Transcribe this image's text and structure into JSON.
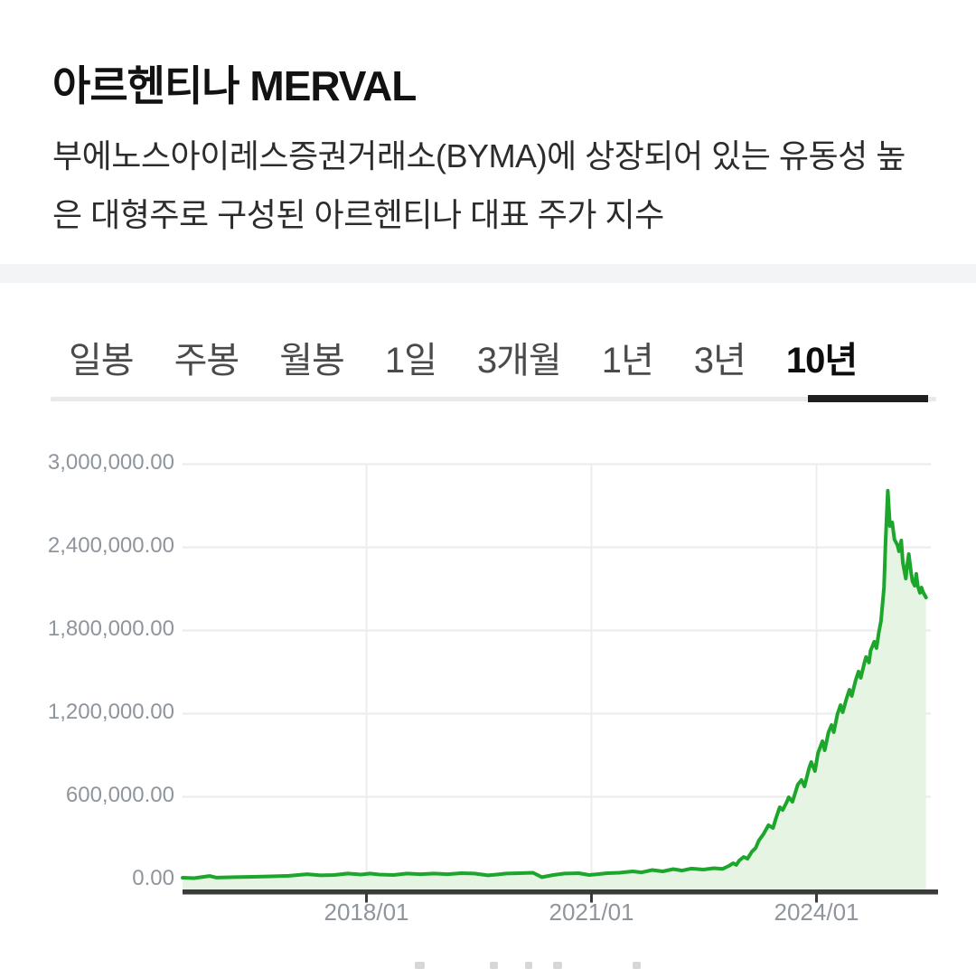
{
  "header": {
    "title": "아르헨티나 MERVAL",
    "description": "부에노스아이레스증권거래소(BYMA)에 상장되어 있는 유동성 높은 대형주로 구성된 아르헨티나 대표 주가 지수"
  },
  "tabs": {
    "items": [
      {
        "label": "일봉",
        "active": false
      },
      {
        "label": "주봉",
        "active": false
      },
      {
        "label": "월봉",
        "active": false
      },
      {
        "label": "1일",
        "active": false
      },
      {
        "label": "3개월",
        "active": false
      },
      {
        "label": "1년",
        "active": false
      },
      {
        "label": "3년",
        "active": false
      },
      {
        "label": "10년",
        "active": true
      }
    ]
  },
  "chart_data": {
    "type": "area",
    "name": "아르헨티나 MERVAL",
    "period": "10년",
    "grid": true,
    "legend": "none",
    "line_color": "#1ca62c",
    "fill_color": "#e6f4e4",
    "grid_color": "#ebebeb",
    "vgrid_color": "#ededed",
    "axis_color": "#3b3b3b",
    "label_color": "#8f959c",
    "x_axis": {
      "range": [
        2015.55,
        2025.52
      ],
      "ticks": [
        {
          "year": 2018.0,
          "label": "2018/01"
        },
        {
          "year": 2021.0,
          "label": "2021/01"
        },
        {
          "year": 2024.0,
          "label": "2024/01"
        }
      ]
    },
    "y_axis": {
      "range": [
        0,
        3000000
      ],
      "ticks": [
        {
          "value": 3000000,
          "label": "3,000,000.00"
        },
        {
          "value": 2400000,
          "label": "2,400,000.00"
        },
        {
          "value": 1800000,
          "label": "1,800,000.00"
        },
        {
          "value": 1200000,
          "label": "1,200,000.00"
        },
        {
          "value": 600000,
          "label": "600,000.00"
        },
        {
          "value": 0,
          "label": "0.00"
        }
      ]
    },
    "series": [
      {
        "name": "MERVAL",
        "points": [
          [
            2015.55,
            16000
          ],
          [
            2015.7,
            13000
          ],
          [
            2015.91,
            29000
          ],
          [
            2016.0,
            17000
          ],
          [
            2016.24,
            20000
          ],
          [
            2016.49,
            23000
          ],
          [
            2016.73,
            26000
          ],
          [
            2016.97,
            30000
          ],
          [
            2017.21,
            42000
          ],
          [
            2017.39,
            33000
          ],
          [
            2017.57,
            36000
          ],
          [
            2017.75,
            46000
          ],
          [
            2017.93,
            39000
          ],
          [
            2018.05,
            46000
          ],
          [
            2018.17,
            39000
          ],
          [
            2018.36,
            36000
          ],
          [
            2018.54,
            46000
          ],
          [
            2018.72,
            42000
          ],
          [
            2018.9,
            46000
          ],
          [
            2019.08,
            42000
          ],
          [
            2019.26,
            49000
          ],
          [
            2019.44,
            46000
          ],
          [
            2019.62,
            33000
          ],
          [
            2019.74,
            39000
          ],
          [
            2019.86,
            46000
          ],
          [
            2020.04,
            49000
          ],
          [
            2020.22,
            52000
          ],
          [
            2020.34,
            20000
          ],
          [
            2020.49,
            36000
          ],
          [
            2020.64,
            46000
          ],
          [
            2020.83,
            49000
          ],
          [
            2020.97,
            36000
          ],
          [
            2021.08,
            42000
          ],
          [
            2021.21,
            49000
          ],
          [
            2021.37,
            52000
          ],
          [
            2021.55,
            62000
          ],
          [
            2021.67,
            55000
          ],
          [
            2021.81,
            72000
          ],
          [
            2021.95,
            62000
          ],
          [
            2022.09,
            78000
          ],
          [
            2022.21,
            68000
          ],
          [
            2022.33,
            82000
          ],
          [
            2022.49,
            75000
          ],
          [
            2022.63,
            85000
          ],
          [
            2022.75,
            80000
          ],
          [
            2022.83,
            101000
          ],
          [
            2022.89,
            121000
          ],
          [
            2022.93,
            108000
          ],
          [
            2022.97,
            140000
          ],
          [
            2023.03,
            166000
          ],
          [
            2023.08,
            153000
          ],
          [
            2023.14,
            205000
          ],
          [
            2023.19,
            232000
          ],
          [
            2023.23,
            284000
          ],
          [
            2023.29,
            329000
          ],
          [
            2023.36,
            395000
          ],
          [
            2023.42,
            375000
          ],
          [
            2023.46,
            447000
          ],
          [
            2023.51,
            525000
          ],
          [
            2023.55,
            505000
          ],
          [
            2023.6,
            558000
          ],
          [
            2023.63,
            597000
          ],
          [
            2023.68,
            564000
          ],
          [
            2023.75,
            688000
          ],
          [
            2023.8,
            721000
          ],
          [
            2023.84,
            675000
          ],
          [
            2023.9,
            805000
          ],
          [
            2023.93,
            851000
          ],
          [
            2023.98,
            786000
          ],
          [
            2024.02,
            916000
          ],
          [
            2024.08,
            1001000
          ],
          [
            2024.11,
            936000
          ],
          [
            2024.16,
            1066000
          ],
          [
            2024.2,
            1118000
          ],
          [
            2024.23,
            1066000
          ],
          [
            2024.28,
            1197000
          ],
          [
            2024.32,
            1262000
          ],
          [
            2024.35,
            1210000
          ],
          [
            2024.4,
            1308000
          ],
          [
            2024.44,
            1373000
          ],
          [
            2024.47,
            1327000
          ],
          [
            2024.52,
            1438000
          ],
          [
            2024.56,
            1504000
          ],
          [
            2024.59,
            1458000
          ],
          [
            2024.64,
            1569000
          ],
          [
            2024.66,
            1608000
          ],
          [
            2024.7,
            1569000
          ],
          [
            2024.72,
            1653000
          ],
          [
            2024.77,
            1719000
          ],
          [
            2024.8,
            1673000
          ],
          [
            2024.83,
            1784000
          ],
          [
            2024.86,
            1869000
          ],
          [
            2024.9,
            2110000
          ],
          [
            2024.92,
            2436000
          ],
          [
            2024.95,
            2808000
          ],
          [
            2024.98,
            2553000
          ],
          [
            2025.01,
            2580000
          ],
          [
            2025.02,
            2534000
          ],
          [
            2025.04,
            2456000
          ],
          [
            2025.08,
            2416000
          ],
          [
            2025.1,
            2371000
          ],
          [
            2025.13,
            2449000
          ],
          [
            2025.15,
            2292000
          ],
          [
            2025.19,
            2175000
          ],
          [
            2025.21,
            2273000
          ],
          [
            2025.23,
            2351000
          ],
          [
            2025.26,
            2221000
          ],
          [
            2025.28,
            2155000
          ],
          [
            2025.31,
            2123000
          ],
          [
            2025.33,
            2208000
          ],
          [
            2025.35,
            2123000
          ],
          [
            2025.38,
            2071000
          ],
          [
            2025.4,
            2110000
          ],
          [
            2025.42,
            2077000
          ],
          [
            2025.46,
            2038000
          ]
        ]
      }
    ]
  }
}
